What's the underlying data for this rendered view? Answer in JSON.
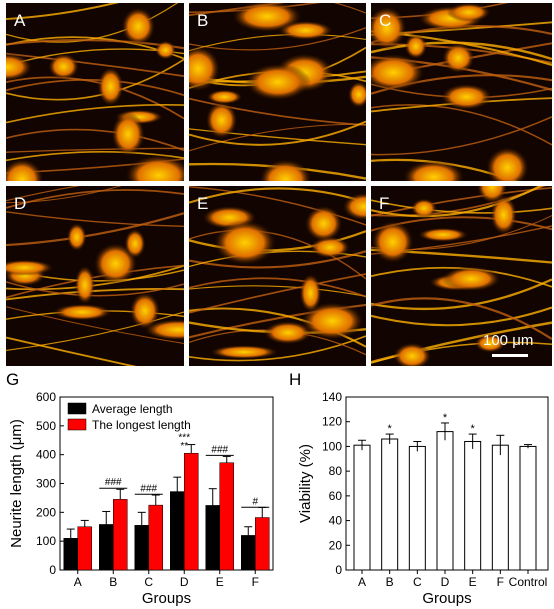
{
  "micrographs": [
    {
      "label": "A"
    },
    {
      "label": "B"
    },
    {
      "label": "C"
    },
    {
      "label": "D"
    },
    {
      "label": "E"
    },
    {
      "label": "F"
    }
  ],
  "scale_bar": {
    "label": "100 μm"
  },
  "colors": {
    "black_bar": "#000000",
    "red_bar": "#ff0000",
    "open_bar": "#ffffff",
    "micrograph_bg": "#120400",
    "cell_bright": "#ffd000",
    "cell_mid": "#e07000"
  },
  "chart_data": [
    {
      "panel": "G",
      "type": "bar",
      "xlabel": "Groups",
      "ylabel": "Neurite length (μm)",
      "ylim": [
        0,
        600
      ],
      "yticks": [
        0,
        100,
        200,
        300,
        400,
        500,
        600
      ],
      "categories": [
        "A",
        "B",
        "C",
        "D",
        "E",
        "F"
      ],
      "series": [
        {
          "name": "Average length",
          "color": "#000000",
          "values": [
            110,
            158,
            155,
            272,
            224,
            120
          ],
          "errors": [
            32,
            45,
            45,
            50,
            58,
            30
          ]
        },
        {
          "name": "The longest length",
          "color": "#ff0000",
          "values": [
            150,
            245,
            225,
            405,
            372,
            182
          ],
          "errors": [
            22,
            35,
            35,
            30,
            22,
            35
          ]
        }
      ],
      "annotations": [
        {
          "category": "B",
          "text": "###",
          "y": 294
        },
        {
          "category": "C",
          "text": "###",
          "y": 273
        },
        {
          "category": "D",
          "text": "***",
          "y": 450
        },
        {
          "category": "D",
          "text": "**",
          "y": 420
        },
        {
          "category": "E",
          "text": "###",
          "y": 408
        },
        {
          "category": "F",
          "text": "#",
          "y": 228
        }
      ],
      "legend_position": "top-left"
    },
    {
      "panel": "H",
      "type": "bar",
      "xlabel": "Groups",
      "ylabel": "Viability (%)",
      "ylim": [
        0,
        140
      ],
      "yticks": [
        0,
        20,
        40,
        60,
        80,
        100,
        120,
        140
      ],
      "categories": [
        "A",
        "B",
        "C",
        "D",
        "E",
        "F",
        "Control"
      ],
      "values": [
        101,
        106,
        100,
        112,
        104,
        101,
        100
      ],
      "errors": [
        4,
        4,
        4,
        7,
        6,
        8,
        1.5
      ],
      "annotations": [
        {
          "category": "B",
          "text": "*"
        },
        {
          "category": "D",
          "text": "*"
        },
        {
          "category": "E",
          "text": "*"
        }
      ]
    }
  ]
}
